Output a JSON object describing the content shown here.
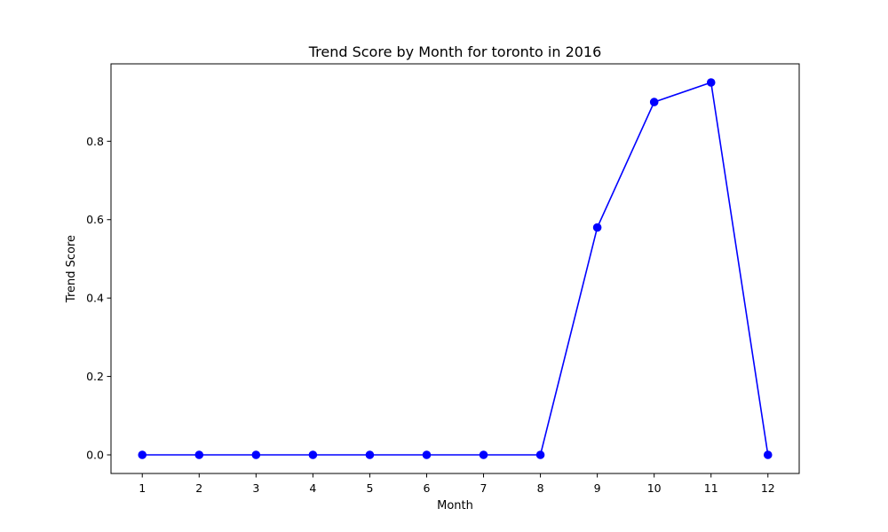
{
  "chart_data": {
    "type": "line",
    "title": "Trend Score by Month for toronto in 2016",
    "xlabel": "Month",
    "ylabel": "Trend Score",
    "x": [
      1,
      2,
      3,
      4,
      5,
      6,
      7,
      8,
      9,
      10,
      11,
      12
    ],
    "x_tick_labels": [
      "1",
      "2",
      "3",
      "4",
      "5",
      "6",
      "7",
      "8",
      "9",
      "10",
      "11",
      "12"
    ],
    "y_ticks": [
      0.0,
      0.2,
      0.4,
      0.6,
      0.8
    ],
    "y_tick_labels": [
      "0.0",
      "0.2",
      "0.4",
      "0.6",
      "0.8"
    ],
    "xlim": [
      0.45,
      12.55
    ],
    "ylim": [
      -0.0475,
      0.9975
    ],
    "grid": false,
    "series": [
      {
        "values": [
          0,
          0,
          0,
          0,
          0,
          0,
          0,
          0,
          0.58,
          0.9,
          0.95,
          0
        ],
        "color": "#0000ff",
        "marker": "circle"
      }
    ]
  }
}
